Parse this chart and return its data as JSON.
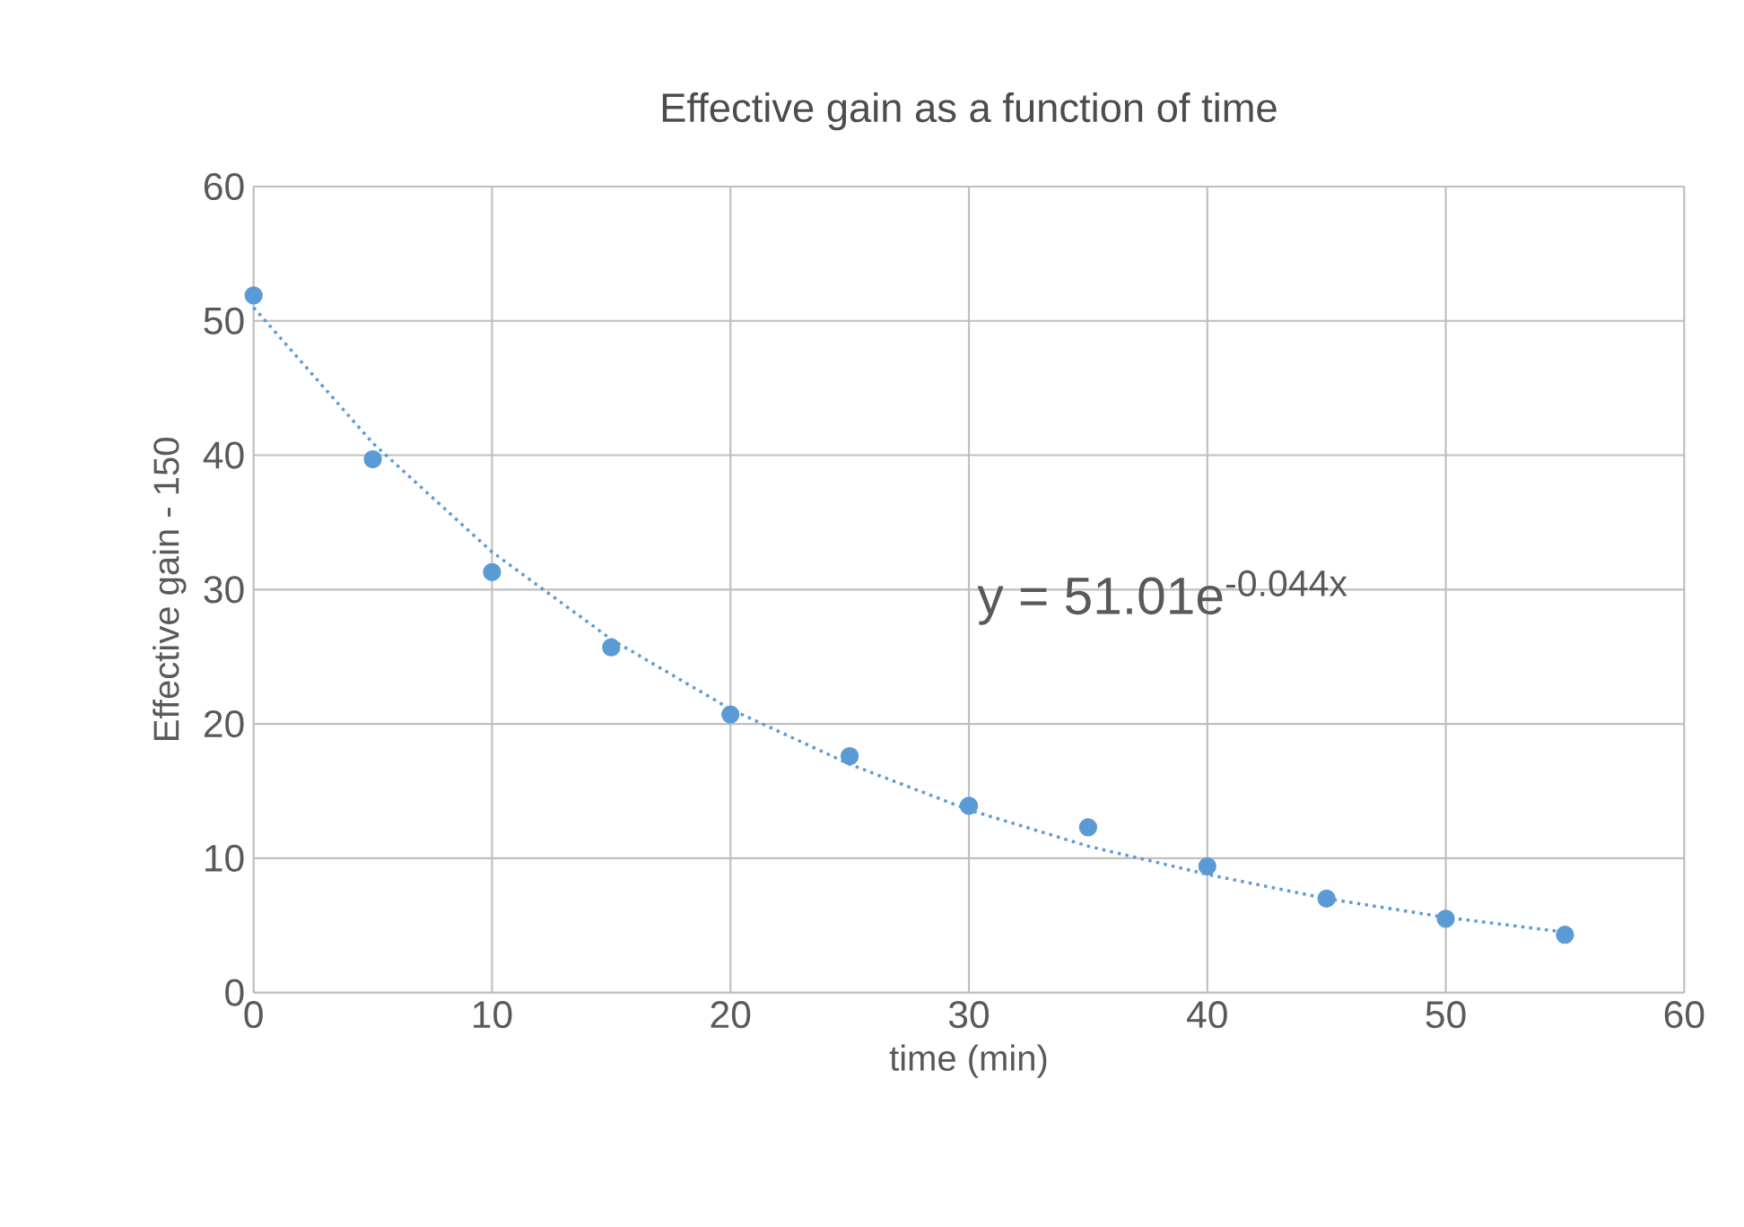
{
  "chart_data": {
    "type": "scatter",
    "title": "Effective gain as a function of time",
    "xlabel": "time (min)",
    "ylabel": "Effective gain - 150",
    "xlim": [
      0,
      60
    ],
    "ylim": [
      0,
      60
    ],
    "xticks": [
      0,
      10,
      20,
      30,
      40,
      50,
      60
    ],
    "yticks": [
      0,
      10,
      20,
      30,
      40,
      50,
      60
    ],
    "grid": true,
    "annotations": [
      "y = 51.01e$^{-0.044x}$"
    ],
    "series": [
      {
        "color": "#5b9bd5",
        "marker": "circle",
        "x": [
          0,
          5,
          10,
          15,
          20,
          25,
          30,
          35,
          40,
          45,
          50,
          55
        ],
        "values": [
          51.9,
          39.7,
          31.3,
          25.7,
          20.7,
          17.6,
          13.9,
          12.3,
          9.4,
          7.0,
          5.5,
          4.3
        ]
      },
      {
        "type": "line",
        "color": "#5b9bd5",
        "line_style": "dotted",
        "marker": "none",
        "x": [
          0,
          5,
          10,
          15,
          20,
          25,
          30,
          35,
          40,
          45,
          50,
          55
        ],
        "values": [
          51.0,
          40.9,
          32.8,
          26.3,
          21.1,
          17.0,
          13.6,
          10.9,
          8.8,
          7.0,
          5.6,
          4.5
        ]
      }
    ]
  }
}
